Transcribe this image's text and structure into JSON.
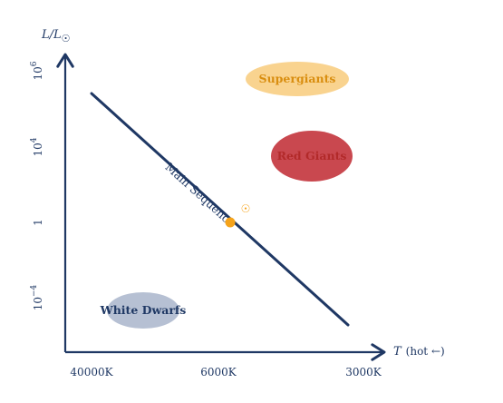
{
  "axes": {
    "y_label_main": "L/L",
    "y_label_sub": "☉",
    "x_label_main": "T",
    "x_label_rest": "(hot ←)",
    "y_ticks": [
      {
        "base": "10",
        "exp": "6"
      },
      {
        "base": "10",
        "exp": "4"
      },
      {
        "base": "1",
        "exp": ""
      },
      {
        "base": "10",
        "exp": "−4"
      }
    ],
    "x_ticks": [
      "40000K",
      "6000K",
      "3000K"
    ]
  },
  "regions": {
    "supergiants": "Supergiants",
    "red_giants": "Red Giants",
    "white_dwarfs": "White Dwarfs"
  },
  "main_sequence_label": "Main Sequence",
  "sun_symbol": "☉",
  "colors": {
    "axis": "#1f3864",
    "main_sequence": "#1f3864",
    "supergiants_fill": "#f9d38f",
    "supergiants_text": "#d98e10",
    "red_giants_fill": "#c9484f",
    "red_giants_text": "#b22a2a",
    "white_dwarfs_fill": "#b6c0d3",
    "white_dwarfs_text": "#1f3864",
    "sun": "#f5a31a"
  }
}
